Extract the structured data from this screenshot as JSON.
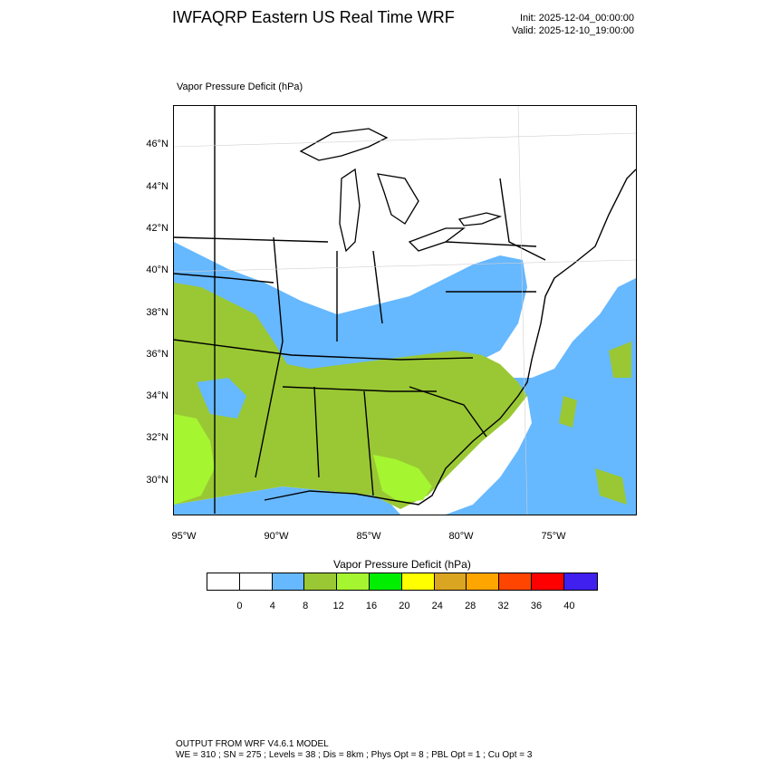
{
  "header": {
    "title": "IWFAQRP Eastern US Real Time WRF",
    "init": "Init: 2025-12-04_00:00:00",
    "valid": "Valid: 2025-12-10_19:00:00"
  },
  "map": {
    "field_label": "Vapor Pressure Deficit   (hPa)",
    "lat_labels": [
      "46°N",
      "44°N",
      "42°N",
      "40°N",
      "38°N",
      "36°N",
      "34°N",
      "32°N",
      "30°N"
    ],
    "lon_labels": [
      "95°W",
      "90°W",
      "85°W",
      "80°W",
      "75°W"
    ],
    "fill_colors": {
      "water": "#ffffff",
      "vpd_4_8": "#66b8ff",
      "vpd_8_12": "#9ac834",
      "vpd_12_16": "#a5f531"
    }
  },
  "colorbar": {
    "title": "Vapor Pressure Deficit  (hPa)",
    "colors": [
      "#ffffff",
      "#ffffff",
      "#66b8ff",
      "#9ac834",
      "#a5f531",
      "#00ee00",
      "#ffff00",
      "#daa520",
      "#ffa500",
      "#ff4500",
      "#ff0000",
      "#4020ee"
    ],
    "labels": [
      "0",
      "4",
      "8",
      "12",
      "16",
      "20",
      "24",
      "28",
      "32",
      "36",
      "40"
    ]
  },
  "footer": {
    "line1": "OUTPUT FROM WRF V4.6.1 MODEL",
    "line2": "WE = 310 ; SN = 275 ; Levels = 38 ; Dis = 8km ; Phys Opt = 8 ; PBL Opt = 1 ; Cu Opt = 3"
  }
}
